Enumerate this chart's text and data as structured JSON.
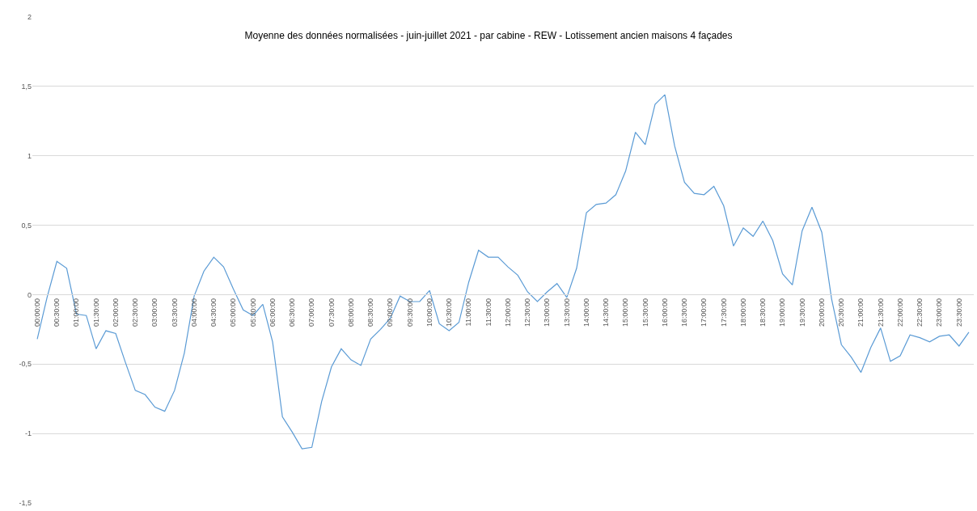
{
  "chart_data": {
    "type": "line",
    "title": "Moyenne des données normalisées - juin-juillet 2021 - par cabine - REW - Lotissement ancien maisons 4 façades",
    "categories": [
      "00:00:00",
      null,
      "00:30:00",
      null,
      "01:00:00",
      null,
      "01:30:00",
      null,
      "02:00:00",
      null,
      "02:30:00",
      null,
      "03:00:00",
      null,
      "03:30:00",
      null,
      "04:00:00",
      null,
      "04:30:00",
      null,
      "05:00:00",
      null,
      "05:30:00",
      null,
      "06:00:00",
      null,
      "06:30:00",
      null,
      "07:00:00",
      null,
      "07:30:00",
      null,
      "08:00:00",
      null,
      "08:30:00",
      null,
      "09:00:00",
      null,
      "09:30:00",
      null,
      "10:00:00",
      null,
      "10:30:00",
      null,
      "11:00:00",
      null,
      "11:30:00",
      null,
      "12:00:00",
      null,
      "12:30:00",
      null,
      "13:00:00",
      null,
      "13:30:00",
      null,
      "14:00:00",
      null,
      "14:30:00",
      null,
      "15:00:00",
      null,
      "15:30:00",
      null,
      "16:00:00",
      null,
      "16:30:00",
      null,
      "17:00:00",
      null,
      "17:30:00",
      null,
      "18:00:00",
      null,
      "18:30:00",
      null,
      "19:00:00",
      null,
      "19:30:00",
      null,
      "20:00:00",
      null,
      "20:30:00",
      null,
      "21:00:00",
      null,
      "21:30:00",
      null,
      "22:00:00",
      null,
      "22:30:00",
      null,
      "23:00:00",
      null,
      "23:30:00",
      null
    ],
    "series": [
      {
        "color": "#5b9bd5",
        "values": [
          -0.32,
          -0.02,
          0.24,
          0.19,
          -0.14,
          -0.15,
          -0.39,
          -0.26,
          -0.28,
          -0.49,
          -0.69,
          -0.72,
          -0.81,
          -0.84,
          -0.69,
          -0.42,
          -0.01,
          0.17,
          0.27,
          0.2,
          0.04,
          -0.11,
          -0.15,
          -0.07,
          -0.34,
          -0.88,
          -0.99,
          -1.11,
          -1.1,
          -0.77,
          -0.52,
          -0.39,
          -0.47,
          -0.51,
          -0.32,
          -0.25,
          -0.17,
          -0.01,
          -0.05,
          -0.05,
          0.03,
          -0.21,
          -0.26,
          -0.2,
          0.09,
          0.32,
          0.27,
          0.27,
          0.2,
          0.14,
          0.02,
          -0.05,
          0.02,
          0.08,
          -0.02,
          0.19,
          0.59,
          0.65,
          0.66,
          0.72,
          0.89,
          1.17,
          1.08,
          1.37,
          1.44,
          1.07,
          0.81,
          0.73,
          0.72,
          0.78,
          0.64,
          0.35,
          0.48,
          0.42,
          0.53,
          0.39,
          0.15,
          0.07,
          0.46,
          0.63,
          0.45,
          -0.03,
          -0.36,
          -0.45,
          -0.56,
          -0.38,
          -0.24,
          -0.48,
          -0.44,
          -0.29,
          -0.31,
          -0.34,
          -0.3,
          -0.29,
          -0.37,
          -0.27
        ]
      }
    ],
    "ylim": [
      -1.5,
      2
    ],
    "yticks": [
      {
        "value": -1.5,
        "label": "-1,5"
      },
      {
        "value": -1,
        "label": "-1"
      },
      {
        "value": -0.5,
        "label": "-0,5"
      },
      0,
      {
        "value": 0.5,
        "label": "0,5"
      },
      1,
      {
        "value": 1.5,
        "label": "1,5"
      },
      2
    ],
    "grid": "y",
    "marker": "none",
    "line_style": "solid"
  }
}
